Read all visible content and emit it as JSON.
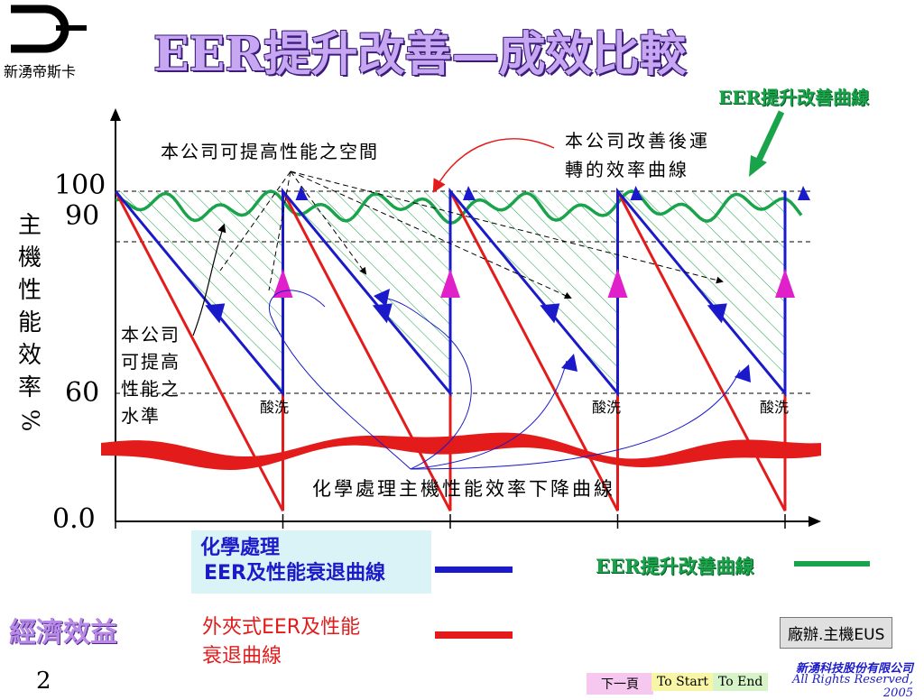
{
  "header": {
    "company_short": "新湧帝斯卡",
    "title": "EER提升改善—成效比較",
    "eer_curve_label": "EER提升改善曲線"
  },
  "chart_data": {
    "type": "line",
    "y_ticks": [
      "100",
      "90",
      "60",
      "0.0"
    ],
    "y_tick_values": [
      100,
      90,
      60,
      0
    ],
    "ylabel_chars": [
      "主",
      "機",
      "性",
      "能",
      "效",
      "率",
      "%"
    ],
    "ylim": [
      0,
      100
    ],
    "cleaning_cycle_x": [
      0,
      1,
      2,
      3,
      4
    ],
    "series": [
      {
        "name": "化學處理EER及性能衰退曲線",
        "color": "#1a1acb",
        "points": [
          [
            0,
            100
          ],
          [
            1,
            60
          ],
          [
            1,
            100
          ],
          [
            2,
            60
          ],
          [
            2,
            100
          ],
          [
            3,
            60
          ],
          [
            3,
            100
          ],
          [
            4,
            60
          ],
          [
            4,
            100
          ]
        ]
      },
      {
        "name": "外夾式EER及性能衰退曲線",
        "color": "#e31b1b",
        "points": [
          [
            0,
            100
          ],
          [
            1,
            5
          ],
          [
            1,
            100
          ],
          [
            2,
            5
          ],
          [
            2,
            100
          ],
          [
            3,
            5
          ],
          [
            3,
            100
          ],
          [
            4,
            5
          ],
          [
            4,
            100
          ]
        ]
      },
      {
        "name": "EER提升改善曲線",
        "color": "#19a34a",
        "value_range": [
          93,
          100
        ]
      }
    ],
    "annotations": {
      "space": "本公司可提高性能之空間",
      "improved_line1": "本公司改善後運",
      "improved_line2": "轉的效率曲線",
      "level_lines": [
        "本公司",
        "可提高",
        "性能之",
        "水準"
      ],
      "acid_wash": "酸洗",
      "chemical_curve": "化學處理主機性能效率下降曲線"
    },
    "grid": false
  },
  "legend": {
    "chemical_line1": "化學處理",
    "chemical_line2": "EER及性能衰退曲線",
    "external_line1": "外夾式EER及性能",
    "external_line2": "衰退曲線",
    "eer_label": "EER提升改善曲線"
  },
  "footer": {
    "economic": "經濟效益",
    "department": "廠辦.主機EUS",
    "company_full": "新湧科技股份有限公司",
    "rights": "All Rights Reserved, 2005",
    "page_number": "2",
    "nav_next": "下一頁",
    "nav_start": "To Start",
    "nav_end": "To End"
  },
  "colors": {
    "blue": "#1a1acb",
    "red": "#e31b1b",
    "green": "#19a34a",
    "magenta": "#e020c8",
    "title": "#c7a6f2"
  }
}
